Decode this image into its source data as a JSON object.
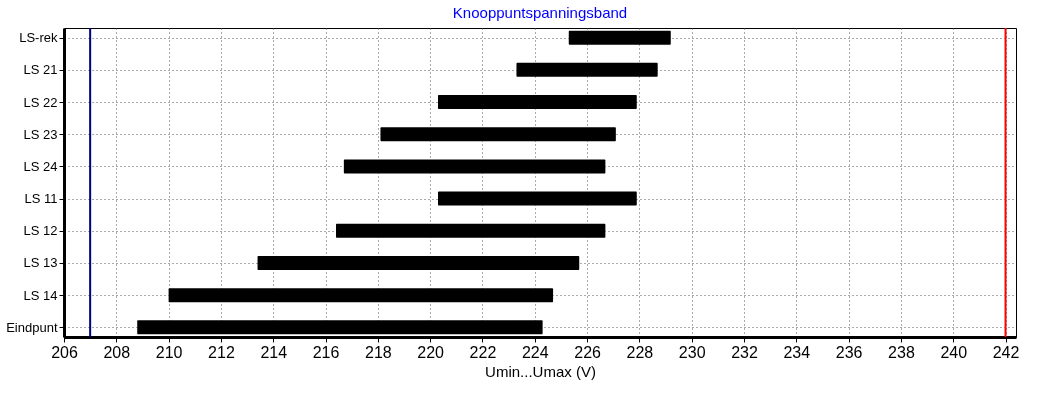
{
  "chart_data": {
    "type": "bar",
    "orientation": "horizontal",
    "title": "Knooppuntspanningsband",
    "xlabel": "Umin...Umax (V)",
    "categories": [
      "LS-rek",
      "LS 21",
      "LS 22",
      "LS 23",
      "LS 24",
      "LS 11",
      "LS 12",
      "LS 13",
      "LS 14",
      "Eindpunt"
    ],
    "base": [
      225.3,
      223.3,
      220.3,
      218.1,
      216.7,
      220.3,
      216.4,
      213.4,
      210.0,
      208.8
    ],
    "values": [
      3.9,
      5.4,
      7.6,
      9.0,
      10.0,
      7.6,
      10.3,
      12.3,
      14.7,
      15.5
    ],
    "color": "#000000",
    "xlim": [
      206,
      242.4
    ],
    "xticks": [
      206,
      208,
      210,
      212,
      214,
      216,
      218,
      220,
      222,
      224,
      226,
      228,
      230,
      232,
      234,
      236,
      238,
      240,
      242
    ],
    "ref_lines": [
      {
        "axis": "x",
        "value": 207,
        "color": "#000080"
      },
      {
        "axis": "x",
        "value": 242,
        "color": "#ff0000"
      }
    ],
    "grid": true
  }
}
